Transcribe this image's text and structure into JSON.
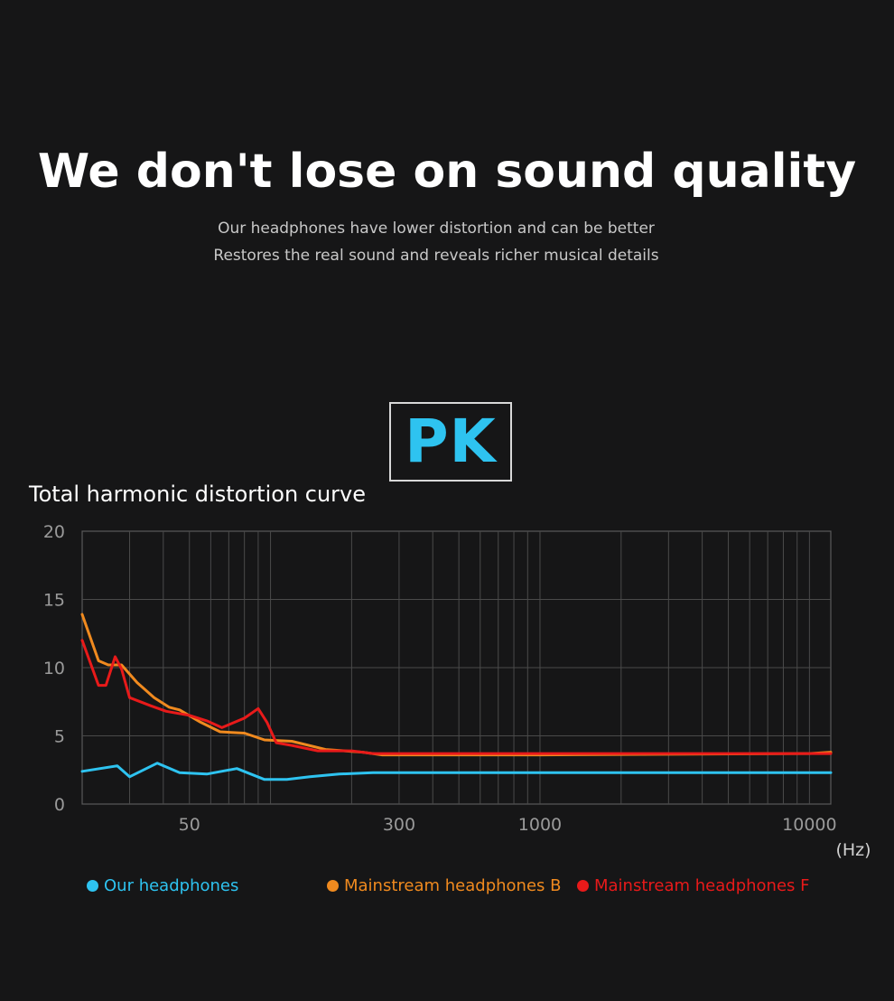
{
  "header": {
    "headline": "We don't lose on sound quality",
    "subline1": "Our headphones have lower distortion and can be better",
    "subline2": "Restores the real sound and reveals richer musical details"
  },
  "badge": {
    "text": "PK",
    "color": "#2ec3f0"
  },
  "chart_title": "Total harmonic distortion curve",
  "chart_data": {
    "type": "line",
    "title": "Total harmonic distortion curve",
    "xlabel": "(Hz)",
    "ylabel": "",
    "x_scale": "log",
    "xlim": [
      20,
      12000
    ],
    "ylim": [
      0,
      20
    ],
    "x_ticks": [
      {
        "value": 50,
        "label": "50"
      },
      {
        "value": 300,
        "label": "300"
      },
      {
        "value": 1000,
        "label": "1000"
      },
      {
        "value": 10000,
        "label": "10000"
      }
    ],
    "y_ticks": [
      {
        "value": 0,
        "label": "0"
      },
      {
        "value": 5,
        "label": "5"
      },
      {
        "value": 10,
        "label": "10"
      },
      {
        "value": 15,
        "label": "15"
      },
      {
        "value": 20,
        "label": "20"
      }
    ],
    "grid": true,
    "legend_position": "bottom",
    "series": [
      {
        "name": "Our headphones",
        "color": "#2ec3f0",
        "points": [
          [
            20,
            2.4
          ],
          [
            27,
            2.8
          ],
          [
            30,
            2.0
          ],
          [
            38,
            3.0
          ],
          [
            46,
            2.3
          ],
          [
            58,
            2.2
          ],
          [
            75,
            2.6
          ],
          [
            95,
            1.8
          ],
          [
            115,
            1.8
          ],
          [
            140,
            2.0
          ],
          [
            180,
            2.2
          ],
          [
            240,
            2.3
          ],
          [
            300,
            2.3
          ],
          [
            600,
            2.3
          ],
          [
            1000,
            2.3
          ],
          [
            3000,
            2.3
          ],
          [
            10000,
            2.3
          ],
          [
            12000,
            2.3
          ]
        ]
      },
      {
        "name": "Mainstream headphones B",
        "color": "#f08a1f",
        "points": [
          [
            20,
            13.9
          ],
          [
            23,
            10.5
          ],
          [
            25,
            10.2
          ],
          [
            28,
            10.2
          ],
          [
            32,
            8.9
          ],
          [
            37,
            7.8
          ],
          [
            42,
            7.1
          ],
          [
            46,
            6.9
          ],
          [
            55,
            6.0
          ],
          [
            65,
            5.3
          ],
          [
            80,
            5.2
          ],
          [
            95,
            4.7
          ],
          [
            120,
            4.6
          ],
          [
            160,
            4.0
          ],
          [
            220,
            3.8
          ],
          [
            260,
            3.6
          ],
          [
            300,
            3.6
          ],
          [
            1000,
            3.6
          ],
          [
            10000,
            3.7
          ],
          [
            12000,
            3.8
          ]
        ]
      },
      {
        "name": "Mainstream headphones F",
        "color": "#e81a1a",
        "points": [
          [
            20,
            12.0
          ],
          [
            23,
            8.7
          ],
          [
            24.5,
            8.7
          ],
          [
            26.5,
            10.8
          ],
          [
            28,
            9.9
          ],
          [
            30,
            7.8
          ],
          [
            36,
            7.2
          ],
          [
            41,
            6.8
          ],
          [
            50,
            6.5
          ],
          [
            58,
            6.1
          ],
          [
            66,
            5.6
          ],
          [
            80,
            6.3
          ],
          [
            90,
            7.0
          ],
          [
            97,
            6.0
          ],
          [
            105,
            4.5
          ],
          [
            120,
            4.3
          ],
          [
            150,
            3.9
          ],
          [
            200,
            3.9
          ],
          [
            240,
            3.7
          ],
          [
            300,
            3.7
          ],
          [
            1000,
            3.7
          ],
          [
            10000,
            3.7
          ],
          [
            12000,
            3.7
          ]
        ]
      }
    ]
  }
}
